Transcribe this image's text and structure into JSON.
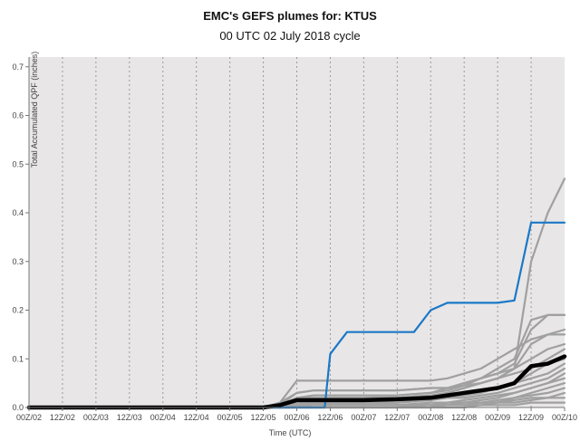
{
  "chart_data": {
    "type": "line",
    "title": "EMC's GEFS plumes for: KTUS",
    "subtitle": "00 UTC 02 July 2018 cycle",
    "xlabel": "Time (UTC)",
    "ylabel": "Total Accumulated QPF (inches)",
    "xlim": [
      0,
      192
    ],
    "ylim": [
      0,
      0.72
    ],
    "x_unit": "hours after 00Z/02",
    "yticks": [
      0.0,
      0.1,
      0.2,
      0.3,
      0.4,
      0.5,
      0.6,
      0.7
    ],
    "ytick_labels": [
      "0.0",
      "0.1",
      "0.2",
      "0.3",
      "0.4",
      "0.5",
      "0.6",
      "0.7"
    ],
    "xticks": [
      0,
      12,
      24,
      36,
      48,
      60,
      72,
      84,
      96,
      108,
      120,
      132,
      144,
      156,
      168,
      180,
      192
    ],
    "xtick_labels": [
      "00Z/02",
      "12Z/02",
      "00Z/03",
      "12Z/03",
      "00Z/04",
      "12Z/04",
      "00Z/05",
      "12Z/05",
      "00Z/06",
      "12Z/06",
      "00Z/07",
      "12Z/07",
      "00Z/08",
      "12Z/08",
      "00Z/09",
      "12Z/09",
      "00Z/10"
    ],
    "grid": "vertical dotted",
    "colors": {
      "background": "#e8e6e6",
      "members": "#a0a0a0",
      "control": "#1a78c8",
      "mean": "#000000",
      "grid": "#999999"
    },
    "series": [
      {
        "role": "member",
        "x": [
          0,
          84,
          90,
          96,
          102,
          108,
          120,
          132,
          144,
          150,
          156,
          162,
          168,
          174,
          180,
          186,
          192
        ],
        "y": [
          0,
          0,
          0.005,
          0.02,
          0.02,
          0.02,
          0.02,
          0.02,
          0.025,
          0.03,
          0.04,
          0.05,
          0.06,
          0.08,
          0.3,
          0.4,
          0.47
        ]
      },
      {
        "role": "member",
        "x": [
          0,
          84,
          90,
          96,
          102,
          108,
          120,
          132,
          144,
          150,
          156,
          162,
          168,
          174,
          180,
          186,
          192
        ],
        "y": [
          0,
          0,
          0.01,
          0.03,
          0.035,
          0.035,
          0.035,
          0.035,
          0.04,
          0.04,
          0.05,
          0.06,
          0.07,
          0.09,
          0.16,
          0.19,
          0.19
        ]
      },
      {
        "role": "member",
        "x": [
          0,
          84,
          90,
          96,
          102,
          108,
          120,
          132,
          144,
          150,
          156,
          162,
          168,
          174,
          180,
          186,
          192
        ],
        "y": [
          0,
          0,
          0.01,
          0.055,
          0.055,
          0.055,
          0.055,
          0.055,
          0.055,
          0.06,
          0.07,
          0.08,
          0.1,
          0.12,
          0.14,
          0.15,
          0.16
        ]
      },
      {
        "role": "member",
        "x": [
          0,
          84,
          90,
          96,
          102,
          108,
          120,
          132,
          144,
          150,
          156,
          162,
          168,
          174,
          180,
          186,
          192
        ],
        "y": [
          0,
          0,
          0.005,
          0.03,
          0.035,
          0.035,
          0.035,
          0.035,
          0.04,
          0.04,
          0.045,
          0.05,
          0.06,
          0.08,
          0.13,
          0.15,
          0.15
        ]
      },
      {
        "role": "member",
        "x": [
          0,
          84,
          90,
          96,
          102,
          108,
          120,
          132,
          144,
          150,
          156,
          162,
          168,
          174,
          180,
          186,
          192
        ],
        "y": [
          0,
          0,
          0,
          0.005,
          0.01,
          0.01,
          0.01,
          0.01,
          0.02,
          0.03,
          0.04,
          0.05,
          0.06,
          0.07,
          0.08,
          0.1,
          0.12
        ]
      },
      {
        "role": "member",
        "x": [
          0,
          84,
          90,
          96,
          102,
          108,
          120,
          132,
          144,
          150,
          156,
          162,
          168,
          174,
          180,
          186,
          192
        ],
        "y": [
          0,
          0,
          0,
          0.005,
          0.01,
          0.01,
          0.01,
          0.01,
          0.015,
          0.02,
          0.025,
          0.03,
          0.04,
          0.05,
          0.06,
          0.07,
          0.09
        ]
      },
      {
        "role": "member",
        "x": [
          0,
          84,
          90,
          96,
          102,
          108,
          120,
          132,
          144,
          150,
          156,
          162,
          168,
          174,
          180,
          186,
          192
        ],
        "y": [
          0,
          0,
          0,
          0.005,
          0.01,
          0.01,
          0.01,
          0.01,
          0.015,
          0.02,
          0.02,
          0.025,
          0.03,
          0.04,
          0.05,
          0.06,
          0.08
        ]
      },
      {
        "role": "member",
        "x": [
          0,
          84,
          90,
          96,
          102,
          108,
          120,
          132,
          144,
          150,
          156,
          162,
          168,
          174,
          180,
          186,
          192
        ],
        "y": [
          0,
          0,
          0,
          0.005,
          0.005,
          0.005,
          0.005,
          0.005,
          0.01,
          0.01,
          0.015,
          0.02,
          0.025,
          0.03,
          0.04,
          0.05,
          0.07
        ]
      },
      {
        "role": "member",
        "x": [
          0,
          84,
          90,
          96,
          102,
          108,
          120,
          132,
          144,
          150,
          156,
          162,
          168,
          174,
          180,
          186,
          192
        ],
        "y": [
          0,
          0,
          0,
          0.005,
          0.005,
          0.005,
          0.005,
          0.005,
          0.005,
          0.01,
          0.01,
          0.015,
          0.02,
          0.03,
          0.04,
          0.05,
          0.06
        ]
      },
      {
        "role": "member",
        "x": [
          0,
          84,
          90,
          96,
          102,
          108,
          120,
          132,
          144,
          150,
          156,
          162,
          168,
          174,
          180,
          186,
          192
        ],
        "y": [
          0,
          0,
          0,
          0.005,
          0.005,
          0.005,
          0.005,
          0.005,
          0.005,
          0.005,
          0.01,
          0.01,
          0.015,
          0.02,
          0.03,
          0.04,
          0.05
        ]
      },
      {
        "role": "member",
        "x": [
          0,
          84,
          90,
          96,
          102,
          108,
          120,
          132,
          144,
          150,
          156,
          162,
          168,
          174,
          180,
          186,
          192
        ],
        "y": [
          0,
          0,
          0,
          0,
          0.005,
          0.005,
          0.005,
          0.005,
          0.005,
          0.005,
          0.005,
          0.01,
          0.01,
          0.02,
          0.025,
          0.03,
          0.04
        ]
      },
      {
        "role": "member",
        "x": [
          0,
          84,
          90,
          96,
          102,
          108,
          120,
          132,
          144,
          150,
          156,
          162,
          168,
          174,
          180,
          186,
          192
        ],
        "y": [
          0,
          0,
          0,
          0,
          0,
          0,
          0,
          0,
          0.005,
          0.005,
          0.005,
          0.01,
          0.01,
          0.015,
          0.02,
          0.02,
          0.03
        ]
      },
      {
        "role": "member",
        "x": [
          0,
          84,
          90,
          96,
          102,
          108,
          120,
          132,
          144,
          150,
          156,
          162,
          168,
          174,
          180,
          186,
          192
        ],
        "y": [
          0,
          0,
          0,
          0,
          0,
          0,
          0,
          0,
          0,
          0.005,
          0.005,
          0.005,
          0.01,
          0.01,
          0.015,
          0.02,
          0.02
        ]
      },
      {
        "role": "member",
        "x": [
          0,
          84,
          90,
          96,
          102,
          108,
          120,
          132,
          144,
          150,
          156,
          162,
          168,
          174,
          180,
          186,
          192
        ],
        "y": [
          0,
          0,
          0,
          0,
          0,
          0,
          0,
          0,
          0,
          0,
          0,
          0.005,
          0.005,
          0.005,
          0.01,
          0.01,
          0.01
        ]
      },
      {
        "role": "member",
        "x": [
          0,
          84,
          90,
          96,
          102,
          108,
          120,
          132,
          144,
          150,
          156,
          162,
          168,
          174,
          180,
          186,
          192
        ],
        "y": [
          0,
          0,
          0.002,
          0.01,
          0.015,
          0.02,
          0.02,
          0.025,
          0.03,
          0.04,
          0.05,
          0.06,
          0.07,
          0.08,
          0.1,
          0.12,
          0.13
        ]
      },
      {
        "role": "member",
        "x": [
          0,
          84,
          90,
          96,
          102,
          108,
          120,
          132,
          144,
          150,
          156,
          162,
          168,
          174,
          180,
          186,
          192
        ],
        "y": [
          0,
          0,
          0.003,
          0.02,
          0.025,
          0.025,
          0.025,
          0.025,
          0.03,
          0.035,
          0.045,
          0.06,
          0.08,
          0.1,
          0.18,
          0.19,
          0.19
        ]
      },
      {
        "role": "member",
        "x": [
          0,
          84,
          90,
          96,
          102,
          108,
          120,
          132,
          144,
          150,
          156,
          162,
          168,
          174,
          180,
          186,
          192
        ],
        "y": [
          0,
          0,
          0.002,
          0.01,
          0.01,
          0.01,
          0.01,
          0.015,
          0.02,
          0.025,
          0.03,
          0.035,
          0.04,
          0.05,
          0.07,
          0.09,
          0.1
        ]
      },
      {
        "role": "control",
        "name": "",
        "x": [
          0,
          84,
          90,
          96,
          102,
          106,
          108,
          114,
          120,
          126,
          132,
          138,
          144,
          150,
          156,
          162,
          168,
          174,
          180,
          186,
          192
        ],
        "y": [
          0,
          0,
          0,
          0,
          0,
          0,
          0.11,
          0.155,
          0.155,
          0.155,
          0.155,
          0.155,
          0.2,
          0.215,
          0.215,
          0.215,
          0.215,
          0.22,
          0.38,
          0.38,
          0.38
        ]
      },
      {
        "role": "mean",
        "name": "",
        "x": [
          0,
          84,
          90,
          96,
          102,
          108,
          120,
          132,
          144,
          150,
          156,
          162,
          168,
          174,
          180,
          186,
          192
        ],
        "y": [
          0,
          0,
          0.005,
          0.015,
          0.015,
          0.015,
          0.015,
          0.017,
          0.02,
          0.025,
          0.03,
          0.035,
          0.04,
          0.05,
          0.085,
          0.09,
          0.105
        ]
      }
    ]
  }
}
